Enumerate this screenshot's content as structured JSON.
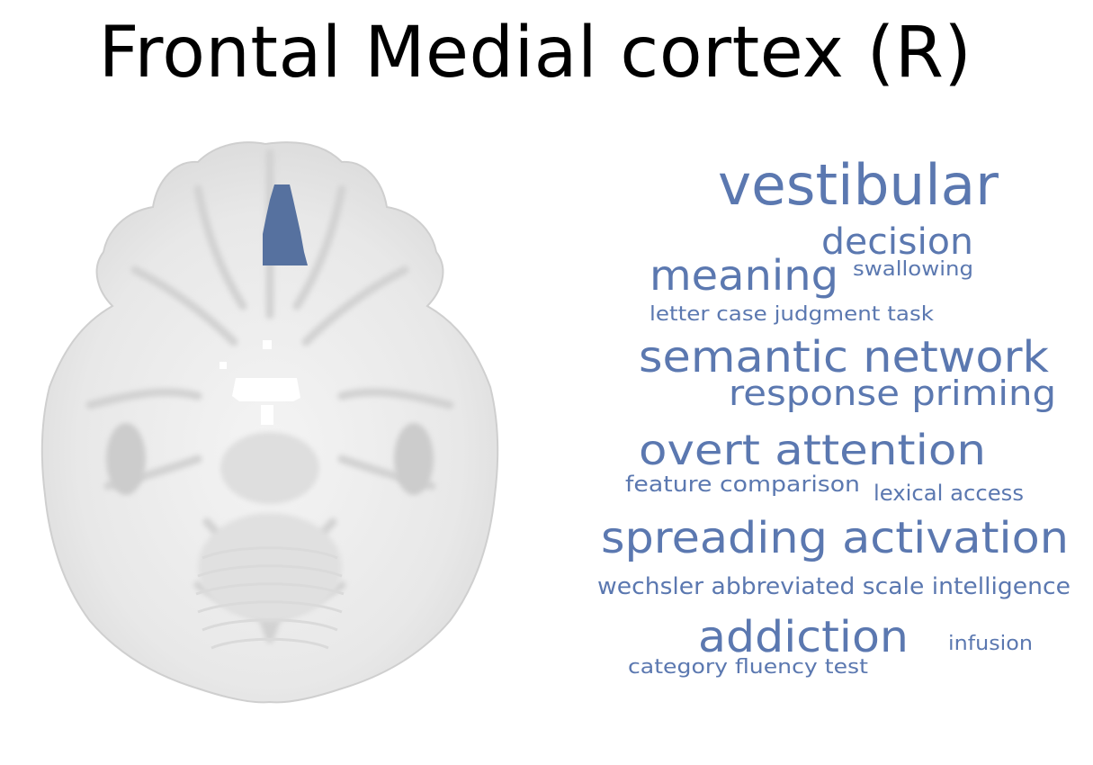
{
  "title": "Frontal Medial cortex (R)",
  "colors": {
    "region": "#56719f",
    "words": "#5b78b0",
    "brain_light": "#efefef",
    "brain_mid": "#d6d6d6"
  },
  "words": [
    {
      "text": "vestibular"
    },
    {
      "text": "decision"
    },
    {
      "text": "meaning"
    },
    {
      "text": "swallowing"
    },
    {
      "text": "letter case judgment task"
    },
    {
      "text": "semantic network"
    },
    {
      "text": "response priming"
    },
    {
      "text": "overt attention"
    },
    {
      "text": "feature comparison"
    },
    {
      "text": "lexical access"
    },
    {
      "text": "spreading activation"
    },
    {
      "text": "wechsler abbreviated scale intelligence"
    },
    {
      "text": "addiction"
    },
    {
      "text": "infusion"
    },
    {
      "text": "category fluency test"
    }
  ]
}
